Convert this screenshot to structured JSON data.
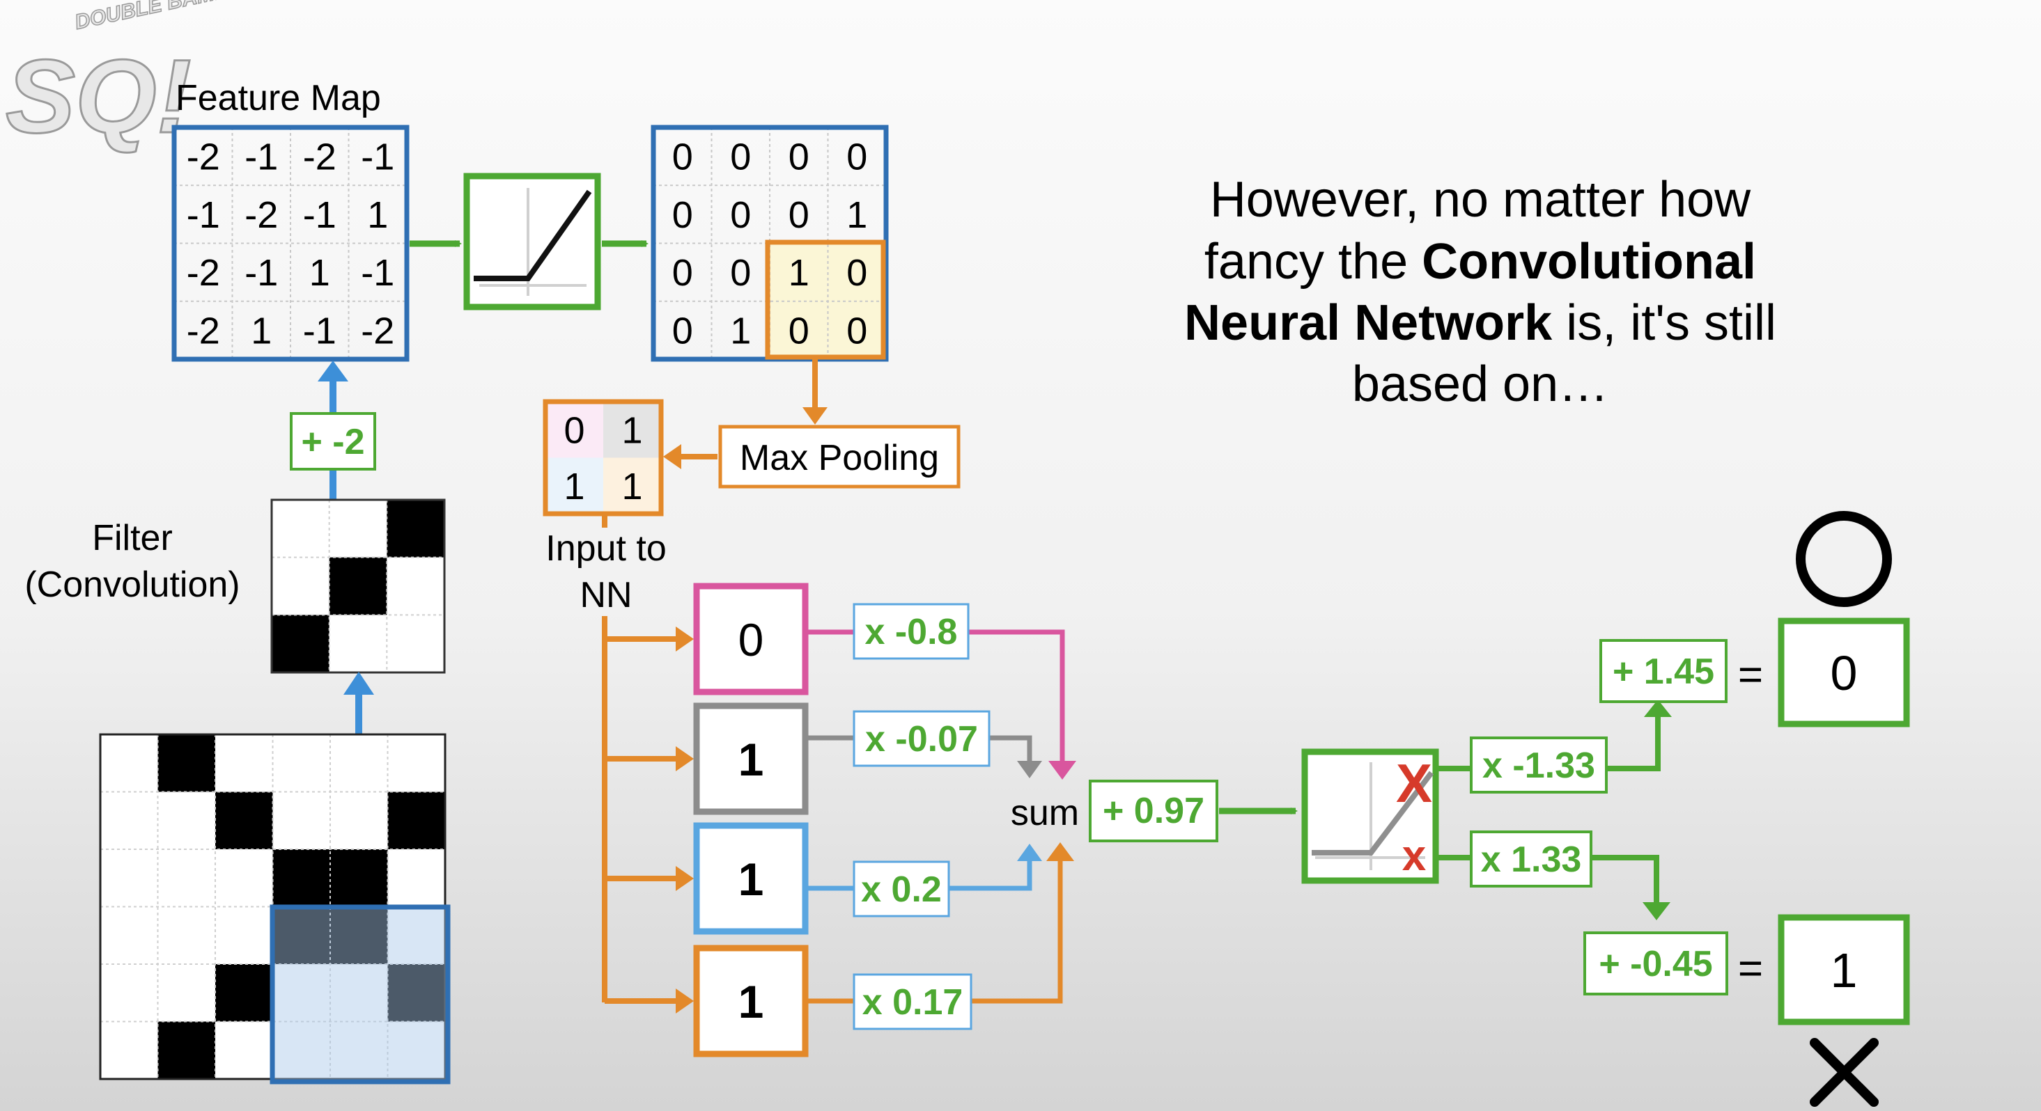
{
  "logo": {
    "main": "SQ!",
    "tagline": "DOUBLE BAM!!!"
  },
  "feature_map": {
    "title": "Feature Map",
    "values": [
      [
        "-2",
        "-1",
        "-2",
        "-1"
      ],
      [
        "-1",
        "-2",
        "-1",
        "1"
      ],
      [
        "-2",
        "-1",
        "1",
        "-1"
      ],
      [
        "-2",
        "1",
        "-1",
        "-2"
      ]
    ]
  },
  "relu_map": {
    "values": [
      [
        "0",
        "0",
        "0",
        "0"
      ],
      [
        "0",
        "0",
        "0",
        "1"
      ],
      [
        "0",
        "0",
        "1",
        "0"
      ],
      [
        "0",
        "1",
        "0",
        "0"
      ]
    ]
  },
  "bias_label": "+ -2",
  "filter": {
    "title_line1": "Filter",
    "title_line2": "(Convolution)",
    "pattern": [
      [
        0,
        0,
        1
      ],
      [
        0,
        1,
        0
      ],
      [
        1,
        0,
        0
      ]
    ]
  },
  "input_image": {
    "pattern": [
      [
        0,
        1,
        0,
        0,
        0,
        0
      ],
      [
        0,
        0,
        1,
        0,
        0,
        1
      ],
      [
        0,
        0,
        0,
        1,
        1,
        0
      ],
      [
        0,
        0,
        0,
        1,
        1,
        0
      ],
      [
        0,
        0,
        1,
        0,
        0,
        1
      ],
      [
        0,
        1,
        0,
        0,
        0,
        0
      ]
    ]
  },
  "max_pooling": {
    "label": "Max Pooling"
  },
  "pooled": {
    "values": [
      [
        "0",
        "1"
      ],
      [
        "1",
        "1"
      ]
    ]
  },
  "input_to_nn": {
    "line1": "Input to",
    "line2": "NN"
  },
  "inputs": [
    {
      "value": "0",
      "weight": "x -0.8",
      "color": "#d9569e"
    },
    {
      "value": "1",
      "weight": "x -0.07",
      "color": "#8c8c8c"
    },
    {
      "value": "1",
      "weight": "x 0.2",
      "color": "#5aa6e0"
    },
    {
      "value": "1",
      "weight": "x 0.17",
      "color": "#e3892a"
    }
  ],
  "sum": {
    "label": "sum",
    "bias": "+ 0.97"
  },
  "outputs": [
    {
      "weight": "x -1.33",
      "bias": "+ 1.45",
      "eq": "=",
      "value": "0"
    },
    {
      "weight": "x 1.33",
      "bias": "+ -0.45",
      "eq": "=",
      "value": "1"
    }
  ],
  "relu_marks": {
    "top": "X",
    "bottom": "x"
  },
  "headline": {
    "line1": "However, no matter how",
    "line2_pre": "fancy the ",
    "line2_bold": "Convolutional",
    "line3_bold": "Neural Network",
    "line3_post": " is, it's still",
    "line4": "based on…"
  },
  "colors": {
    "blue": "#2f6fb3",
    "green": "#4da832",
    "orange": "#e3892a",
    "pink": "#d9569e",
    "gray": "#8c8c8c",
    "lightblue": "#5aa6e0",
    "red": "#d63a2a"
  }
}
